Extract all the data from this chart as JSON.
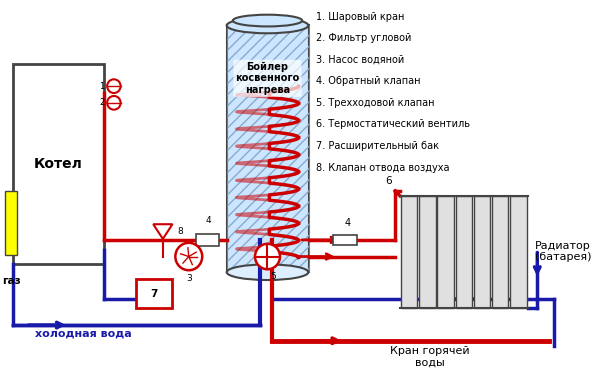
{
  "bg_color": "#ffffff",
  "red": "#cc0000",
  "dark_blue": "#1a1aaa",
  "yellow": "#ffff00",
  "dark_gray": "#444444",
  "legend": [
    "1. Шаровый кран",
    "2. Фильтр угловой",
    "3. Насос водяной",
    "4. Обратный клапан",
    "5. Трехходовой клапан",
    "6. Термостатический вентиль",
    "7. Расширительный бак",
    "8. Клапан отвода воздуха"
  ],
  "label_kotel": "Котел",
  "label_boiler": "Бойлер\nкосвенного\nнагрева",
  "label_gaz": "газ",
  "label_cold": "холодная вода",
  "label_hot": "Кран горячей\nводы",
  "label_radiator": "Радиатор\n(батарея)"
}
